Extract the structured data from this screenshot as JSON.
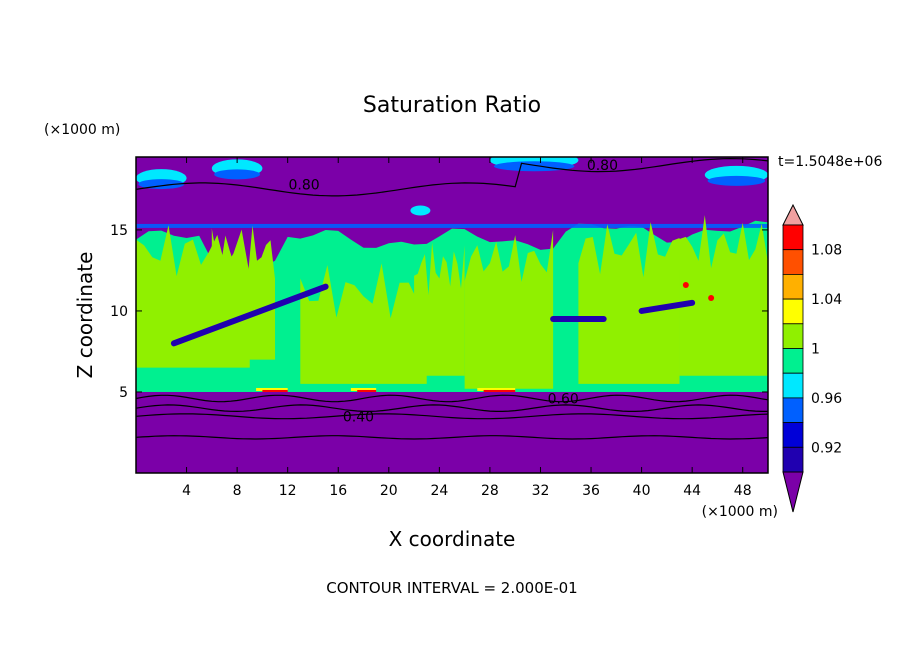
{
  "chart_data": {
    "type": "heatmap",
    "title": "Saturation Ratio",
    "xlabel": "X coordinate",
    "ylabel": "Z coordinate",
    "x_unit": "(×1000 m)",
    "y_unit": "(×1000 m)",
    "time_label": "t=1.5048e+06",
    "footer": "CONTOUR INTERVAL = 2.000E-01",
    "xlim": [
      0,
      50
    ],
    "ylim": [
      0,
      19.5
    ],
    "x_ticks": [
      4,
      8,
      12,
      16,
      20,
      24,
      28,
      32,
      36,
      40,
      44,
      48
    ],
    "y_ticks": [
      5,
      10,
      15
    ],
    "colorbar": {
      "levels": [
        0.9,
        0.92,
        0.94,
        0.96,
        0.98,
        1.0,
        1.02,
        1.04,
        1.06,
        1.08,
        1.1
      ],
      "tick_labels": [
        "0.92",
        "0.96",
        "1",
        "1.04",
        "1.08"
      ],
      "colors": [
        "#7b00a8",
        "#2000b0",
        "#0000d8",
        "#0060ff",
        "#00e8ff",
        "#00f090",
        "#90f000",
        "#ffff00",
        "#ffb000",
        "#ff5000",
        "#ff0000",
        "#f0a0a0"
      ]
    },
    "contour_labels": [
      {
        "text": "0.80",
        "x": 36.9,
        "z": 19.0
      },
      {
        "text": "0.80",
        "x": 13.3,
        "z": 17.8
      },
      {
        "text": "0.60",
        "x": 33.8,
        "z": 4.6
      },
      {
        "text": "0.40",
        "x": 17.6,
        "z": 3.5
      }
    ],
    "regions": {
      "lower_layer": {
        "z_top": 5.0,
        "value": 0.78
      },
      "moist_layer": {
        "z_bottom": 5.0,
        "z_top": 15.0,
        "value": 0.99
      },
      "upper_layer": {
        "z_bottom": 15.0,
        "value": 0.85
      }
    }
  }
}
